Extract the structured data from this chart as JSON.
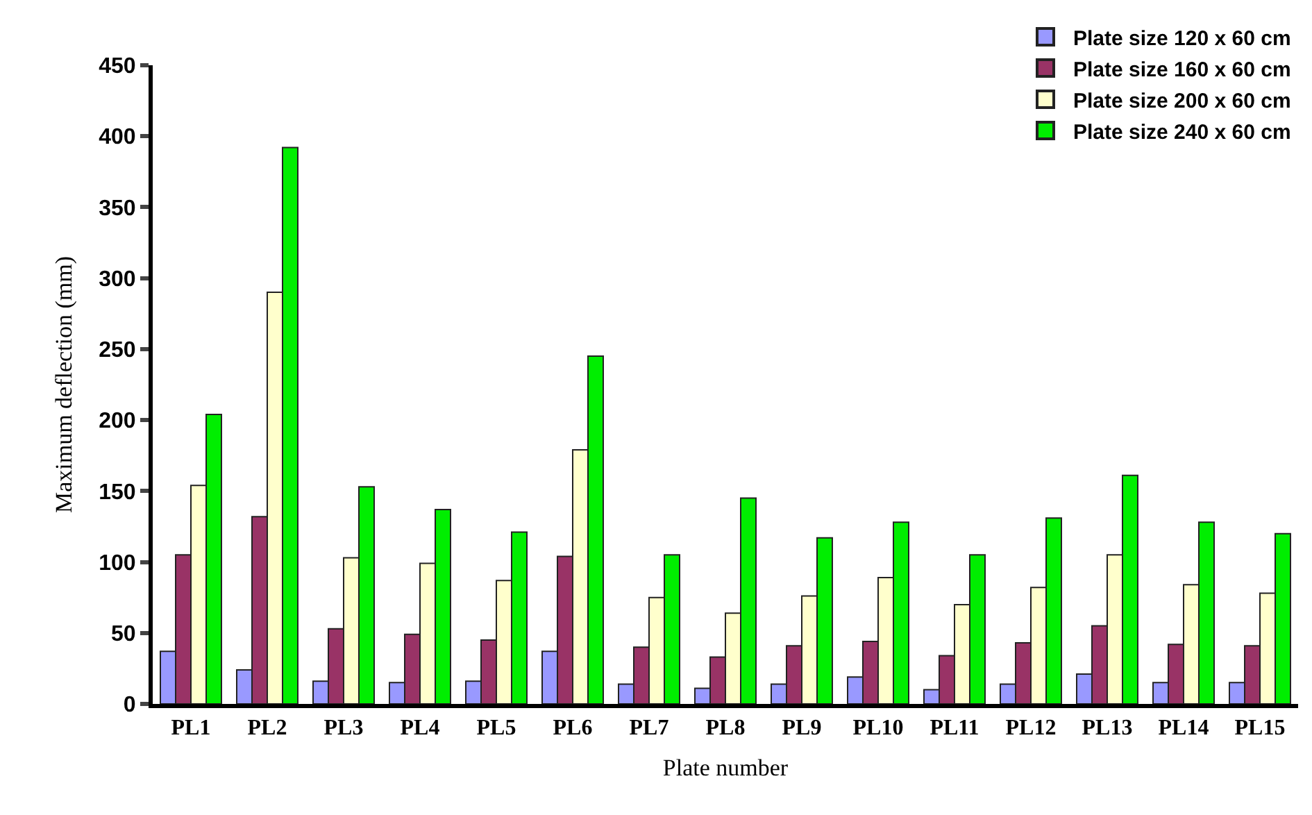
{
  "chart_data": {
    "type": "bar",
    "xlabel": "Plate number",
    "ylabel": "Maximum deflection (mm)",
    "categories": [
      "PL1",
      "PL2",
      "PL3",
      "PL4",
      "PL5",
      "PL6",
      "PL7",
      "PL8",
      "PL9",
      "PL10",
      "PL11",
      "PL12",
      "PL13",
      "PL14",
      "PL15"
    ],
    "series": [
      {
        "name": "Plate size 120 x 60 cm",
        "color": "#9999ff",
        "values": [
          37,
          24,
          16,
          15,
          16,
          37,
          14,
          11,
          14,
          19,
          10,
          14,
          21,
          15,
          15
        ]
      },
      {
        "name": "Plate size 160 x 60 cm",
        "color": "#993366",
        "values": [
          105,
          132,
          53,
          49,
          45,
          104,
          40,
          33,
          41,
          44,
          34,
          43,
          55,
          42,
          41
        ]
      },
      {
        "name": "Plate size 200 x 60 cm",
        "color": "#ffffcc",
        "values": [
          154,
          290,
          103,
          99,
          87,
          179,
          75,
          64,
          76,
          89,
          70,
          82,
          105,
          84,
          78
        ]
      },
      {
        "name": "Plate size 240 x 60 cm",
        "color": "#00ee00",
        "values": [
          204,
          392,
          153,
          137,
          121,
          245,
          105,
          145,
          117,
          128,
          105,
          131,
          161,
          128,
          120
        ]
      }
    ],
    "ylim": [
      0,
      450
    ],
    "yticks": [
      0,
      50,
      100,
      150,
      200,
      250,
      300,
      350,
      400,
      450
    ],
    "legend": "top right"
  }
}
